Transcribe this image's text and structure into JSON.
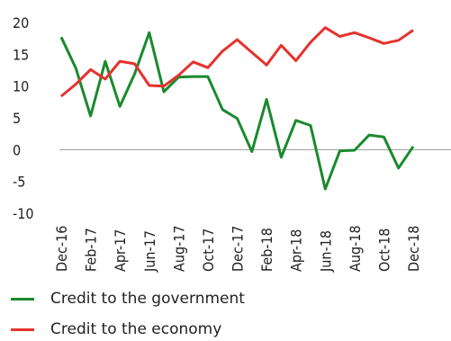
{
  "chart_data": {
    "type": "line",
    "title": "",
    "xlabel": "",
    "ylabel": "",
    "ylim": [
      -10,
      20
    ],
    "yticks": [
      20,
      15,
      10,
      5,
      0,
      -5,
      -10
    ],
    "zero_line": true,
    "grid": false,
    "x": [
      "Dec-16",
      "Jan-17",
      "Feb-17",
      "Mar-17",
      "Apr-17",
      "May-17",
      "Jun-17",
      "Jul-17",
      "Aug-17",
      "Sep-17",
      "Oct-17",
      "Nov-17",
      "Dec-17",
      "Jan-18",
      "Feb-18",
      "Mar-18",
      "Apr-18",
      "May-18",
      "Jun-18",
      "Jul-18",
      "Aug-18",
      "Sep-18",
      "Oct-18",
      "Nov-18",
      "Dec-18"
    ],
    "tick_labels": [
      "Dec-16",
      "Feb-17",
      "Apr-17",
      "Jun-17",
      "Aug-17",
      "Oct-17",
      "Dec-17",
      "Feb-18",
      "Apr-18",
      "Jun-18",
      "Aug-18",
      "Oct-18",
      "Dec-18"
    ],
    "legend_position": "bottom-left",
    "series": [
      {
        "name": "Credit to the government",
        "color": "#1a8a2e",
        "values": [
          17.7,
          12.8,
          5.3,
          13.9,
          6.8,
          11.9,
          18.4,
          9.1,
          11.4,
          11.5,
          11.5,
          6.3,
          4.9,
          -0.3,
          7.9,
          -1.2,
          4.6,
          3.8,
          -6.2,
          -0.2,
          -0.1,
          2.3,
          2.0,
          -2.9,
          0.5
        ]
      },
      {
        "name": "Credit to the economy",
        "color": "#e5322d",
        "values": [
          8.4,
          10.3,
          12.6,
          11.1,
          13.9,
          13.5,
          10.1,
          10.0,
          11.7,
          13.8,
          12.9,
          15.5,
          17.3,
          15.3,
          13.3,
          16.4,
          14.0,
          16.9,
          19.2,
          17.8,
          18.4,
          17.6,
          16.7,
          17.2,
          18.8
        ]
      }
    ]
  },
  "legend": {
    "items": [
      {
        "label": "Credit to the government",
        "color": "#1a8a2e"
      },
      {
        "label": "Credit to the economy",
        "color": "#e5322d"
      }
    ]
  }
}
